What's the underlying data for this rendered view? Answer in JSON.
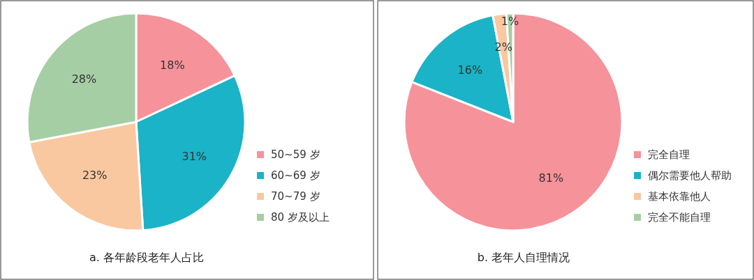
{
  "chart_data": [
    {
      "type": "pie",
      "title": "a. 各年龄段老年人占比",
      "categories": [
        "50~59 岁",
        "60~69 岁",
        "70~79 岁",
        "80 岁及以上"
      ],
      "values": [
        18,
        31,
        23,
        28
      ],
      "colors": [
        "#f6929a",
        "#1ab3c7",
        "#f9c8a0",
        "#a5cea4"
      ],
      "value_labels": [
        "18%",
        "31%",
        "23%",
        "28%"
      ],
      "legend": "right"
    },
    {
      "type": "pie",
      "title": "b. 老年人自理情况",
      "categories": [
        "完全自理",
        "偶尔需要他人帮助",
        "基本依靠他人",
        "完全不能自理"
      ],
      "values": [
        81,
        16,
        2,
        1
      ],
      "colors": [
        "#f6929a",
        "#1ab3c7",
        "#f9c8a0",
        "#a5cea4"
      ],
      "value_labels": [
        "81%",
        "16%",
        "2%",
        "1%"
      ],
      "legend": "right"
    }
  ]
}
